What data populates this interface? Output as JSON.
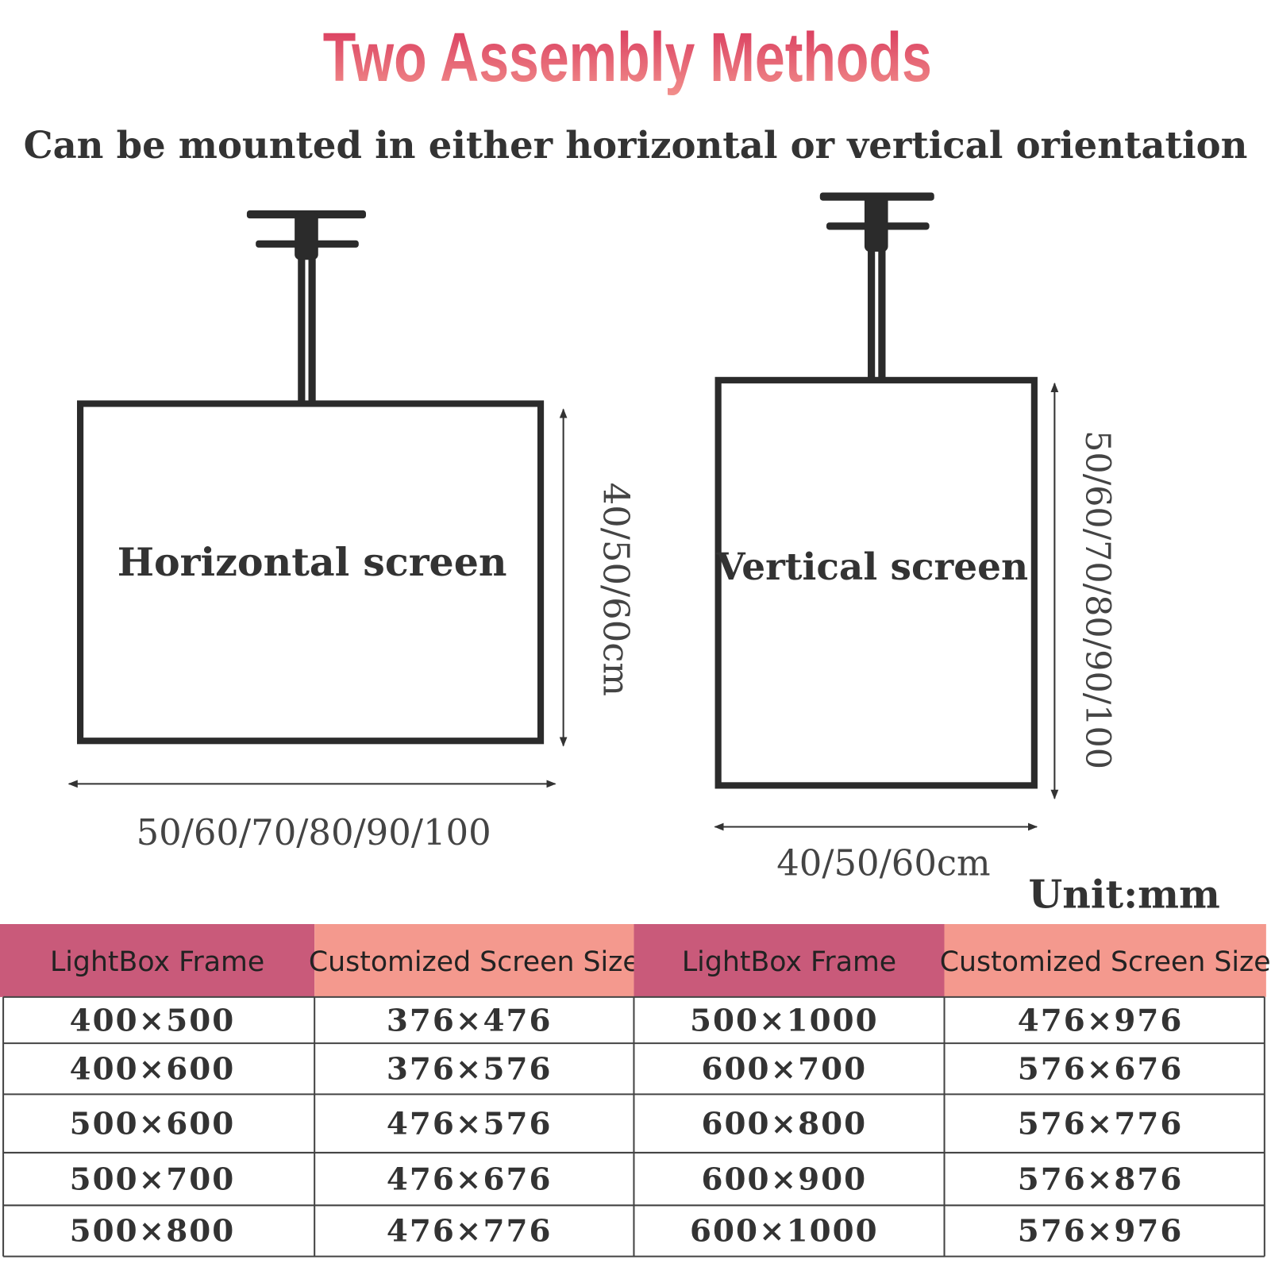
{
  "header": {
    "title": "Two Assembly Methods",
    "subtitle": "Can be mounted in either horizontal or vertical orientation"
  },
  "diagrams": [
    {
      "label": "Horizontal screen",
      "height_label": "40/50/60cm",
      "width_label": "50/60/70/80/90/100"
    },
    {
      "label": "Vertical screen",
      "height_label": "50/60/70/80/90/100",
      "width_label": "40/50/60cm"
    }
  ],
  "unit": "Unit:mm",
  "table": {
    "headers": [
      "LightBox Frame",
      "Customized Screen Size",
      "LightBox Frame",
      "Customized Screen Size"
    ],
    "rows": [
      [
        "400×500",
        "376×476",
        "500×1000",
        "476×976"
      ],
      [
        "400×600",
        "376×576",
        "600×700",
        "576×676"
      ],
      [
        "500×600",
        "476×576",
        "600×800",
        "576×776"
      ],
      [
        "500×700",
        "476×676",
        "600×900",
        "576×876"
      ],
      [
        "500×800",
        "476×776",
        "600×1000",
        "576×976"
      ]
    ]
  }
}
